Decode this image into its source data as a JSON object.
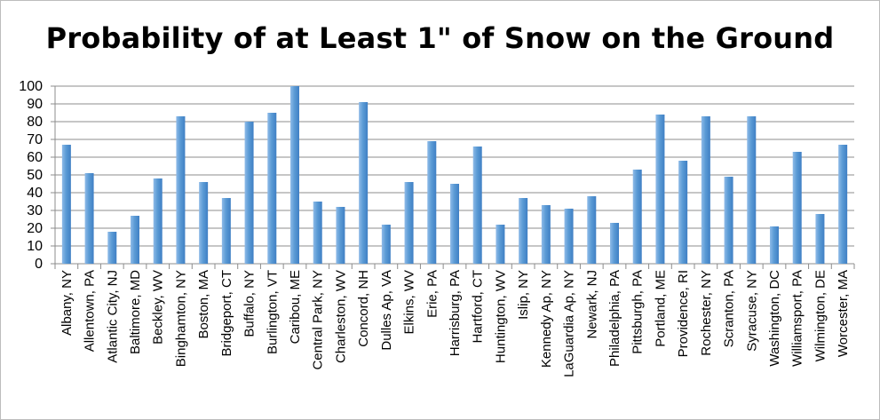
{
  "chart_data": {
    "type": "bar",
    "title": "Probability of at Least 1\" of Snow on the Ground",
    "xlabel": "",
    "ylabel": "",
    "ylim": [
      0,
      100
    ],
    "yticks": [
      0,
      10,
      20,
      30,
      40,
      50,
      60,
      70,
      80,
      90,
      100
    ],
    "grid": true,
    "legend": "none",
    "bar_color": "#5b9bd5",
    "grid_color": "#8c8c8c",
    "categories": [
      "Albany, NY",
      "Allentown, PA",
      "Atlantic City, NJ",
      "Baltimore, MD",
      "Beckley, WV",
      "Binghamton, NY",
      "Boston, MA",
      "Bridgeport, CT",
      "Buffalo, NY",
      "Burlington, VT",
      "Caribou, ME",
      "Central Park, NY",
      "Charleston, WV",
      "Concord, NH",
      "Dulles Ap, VA",
      "Elkins, WV",
      "Erie, PA",
      "Harrisburg, PA",
      "Hartford, CT",
      "Huntington, WV",
      "Islip, NY",
      "Kennedy Ap, NY",
      "LaGuardia Ap, NY",
      "Newark, NJ",
      "Philadelphia, PA",
      "Pittsburgh, PA",
      "Portland, ME",
      "Providence, RI",
      "Rochester, NY",
      "Scranton, PA",
      "Syracuse, NY",
      "Washington, DC",
      "Williamsport, PA",
      "Wilmington, DE",
      "Worcester, MA"
    ],
    "values": [
      67,
      51,
      18,
      27,
      48,
      83,
      46,
      37,
      80,
      85,
      100,
      35,
      32,
      91,
      22,
      46,
      69,
      45,
      66,
      22,
      37,
      33,
      31,
      38,
      23,
      53,
      84,
      58,
      83,
      49,
      83,
      21,
      63,
      28,
      67
    ]
  }
}
